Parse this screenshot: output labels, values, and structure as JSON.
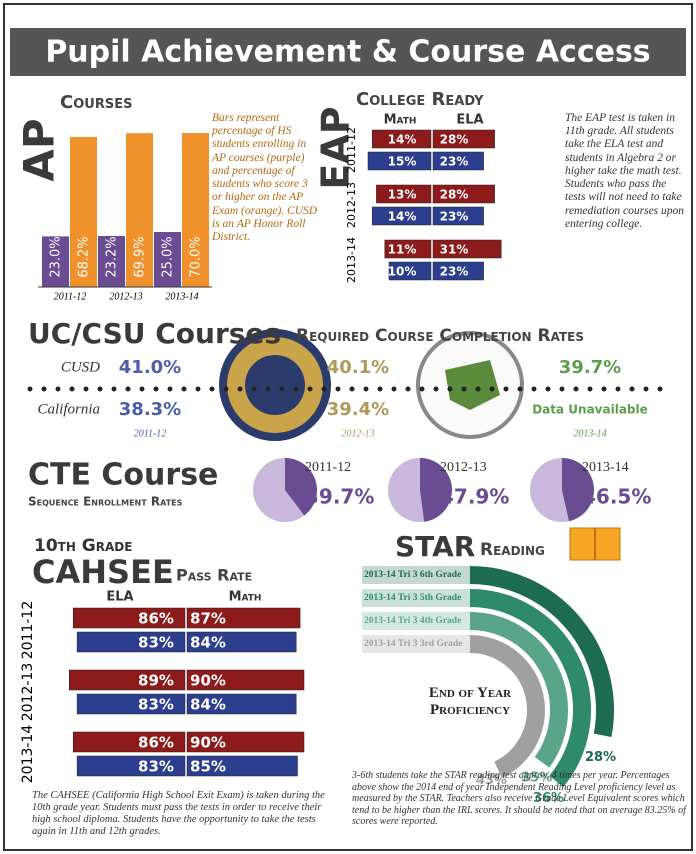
{
  "title": "Pupil Achievement & Course Access",
  "chart_data": [
    {
      "type": "bar",
      "title": "AP",
      "subtitle": "Courses",
      "categories": [
        "2011-12",
        "2012-13",
        "2013-14"
      ],
      "series": [
        {
          "color": "#6a4c93",
          "values": [
            23.0,
            23.2,
            25.0
          ],
          "value_labels": [
            "23.0%",
            "23.2%",
            "25.0%"
          ]
        },
        {
          "color": "#f0922b",
          "values": [
            68.2,
            69.9,
            70.0
          ],
          "value_labels": [
            "68.2%",
            "69.9%",
            "70.0%"
          ]
        }
      ],
      "note": "Bars represent percentage of HS students enrolling in AP courses (purple) and percentage of students who score 3 or higher on the AP Exam (orange). CUSD is an AP Honor Roll District."
    },
    {
      "type": "hbar",
      "title": "EAP",
      "subtitle": "College Ready",
      "columns": [
        "Math",
        "ELA"
      ],
      "categories": [
        "2011-12",
        "2012-13",
        "2013-14"
      ],
      "series": [
        {
          "color": "#8e1b1b",
          "values": [
            14,
            13,
            11
          ],
          "value_labels": [
            "14%",
            "13%",
            "11%"
          ]
        },
        {
          "color": "#8e1b1b",
          "values": [
            28,
            28,
            31
          ],
          "value_labels": [
            "28%",
            "28%",
            "31%"
          ]
        },
        {
          "color": "#2c3f8f",
          "values": [
            15,
            14,
            10
          ],
          "value_labels": [
            "15%",
            "14%",
            "10%"
          ]
        },
        {
          "color": "#2c3f8f",
          "values": [
            23,
            23,
            23
          ],
          "value_labels": [
            "23%",
            "23%",
            "23%"
          ]
        }
      ],
      "note": "The EAP test is taken in 11th grade. All students take the ELA test and students in Algebra 2 or higher take the math test. Students who pass the tests will not need to take remediation courses upon entering college."
    },
    {
      "type": "stat",
      "title": "UC/CSU Courses",
      "subtitle": "Required Course Completion Rates",
      "categories": [
        "2011-12",
        "2012-13",
        "2013-14"
      ],
      "colors": [
        "#4a5fa8",
        "#b09a5a",
        "#5aa04a"
      ],
      "series": [
        {
          "name": "CUSD",
          "values": [
            41.0,
            40.1,
            39.7
          ],
          "value_labels": [
            "41.0%",
            "40.1%",
            "39.7%"
          ]
        },
        {
          "name": "California",
          "values": [
            38.3,
            39.4,
            null
          ],
          "value_labels": [
            "38.3%",
            "39.4%",
            "Data Unavailable"
          ]
        }
      ]
    },
    {
      "type": "pie",
      "title": "CTE Course",
      "subtitle": "Sequence Enrollment Rates",
      "categories": [
        "2011-12",
        "2012-13",
        "2013-14"
      ],
      "values": [
        39.7,
        47.9,
        46.5
      ],
      "value_labels": [
        "39.7%",
        "47.9%",
        "46.5%"
      ],
      "color": "#6a4c93",
      "bg_color": "#c8b8dc"
    },
    {
      "type": "hbar",
      "supertitle": "10th Grade",
      "title": "CAHSEE",
      "subtitle": "Pass Rate",
      "columns": [
        "ELA",
        "Math"
      ],
      "categories": [
        "2011-12",
        "2012-13",
        "2013-14"
      ],
      "series": [
        {
          "color": "#8e1b1b",
          "values": [
            86,
            89,
            86
          ],
          "value_labels": [
            "86%",
            "89%",
            "86%"
          ]
        },
        {
          "color": "#8e1b1b",
          "values": [
            87,
            90,
            90
          ],
          "value_labels": [
            "87%",
            "90%",
            "90%"
          ]
        },
        {
          "color": "#2c3f8f",
          "values": [
            83,
            83,
            83
          ],
          "value_labels": [
            "83%",
            "83%",
            "83%"
          ]
        },
        {
          "color": "#2c3f8f",
          "values": [
            84,
            84,
            85
          ],
          "value_labels": [
            "84%",
            "84%",
            "85%"
          ]
        }
      ],
      "note": "The CAHSEE (California High School Exit Exam) is taken during the 10th grade year. Students must pass the tests in order to receive their high school diploma. Students have the opportunity to take the tests again in 11th and 12th grades."
    },
    {
      "type": "radial",
      "title": "STAR",
      "subtitle": "Reading",
      "categories": [
        "2013-14 Tri 3 6th Grade",
        "2013-14 Tri 3 5th Grade",
        "2013-14 Tri 3 4th Grade",
        "2013-14 Tri 3 3rd Grade"
      ],
      "values": [
        28,
        36,
        35,
        43
      ],
      "value_labels": [
        "28%",
        "36%",
        "35%",
        "43%"
      ],
      "colors": [
        "#1d6b50",
        "#2e8a6a",
        "#5aa58a",
        "#a0a0a0"
      ],
      "center_label": "End of Year Proficiency",
      "note": "3-6th students take the STAR reading test approx. 4 times per year. Percentages above show the 2014 end of year Independent Reading Level proficiency level as measured by the STAR. Teachers also receive Grade Level Equivalent scores which tend to be higher than the IRL scores. It should be noted that on average 83.25% of scores were reported."
    }
  ]
}
